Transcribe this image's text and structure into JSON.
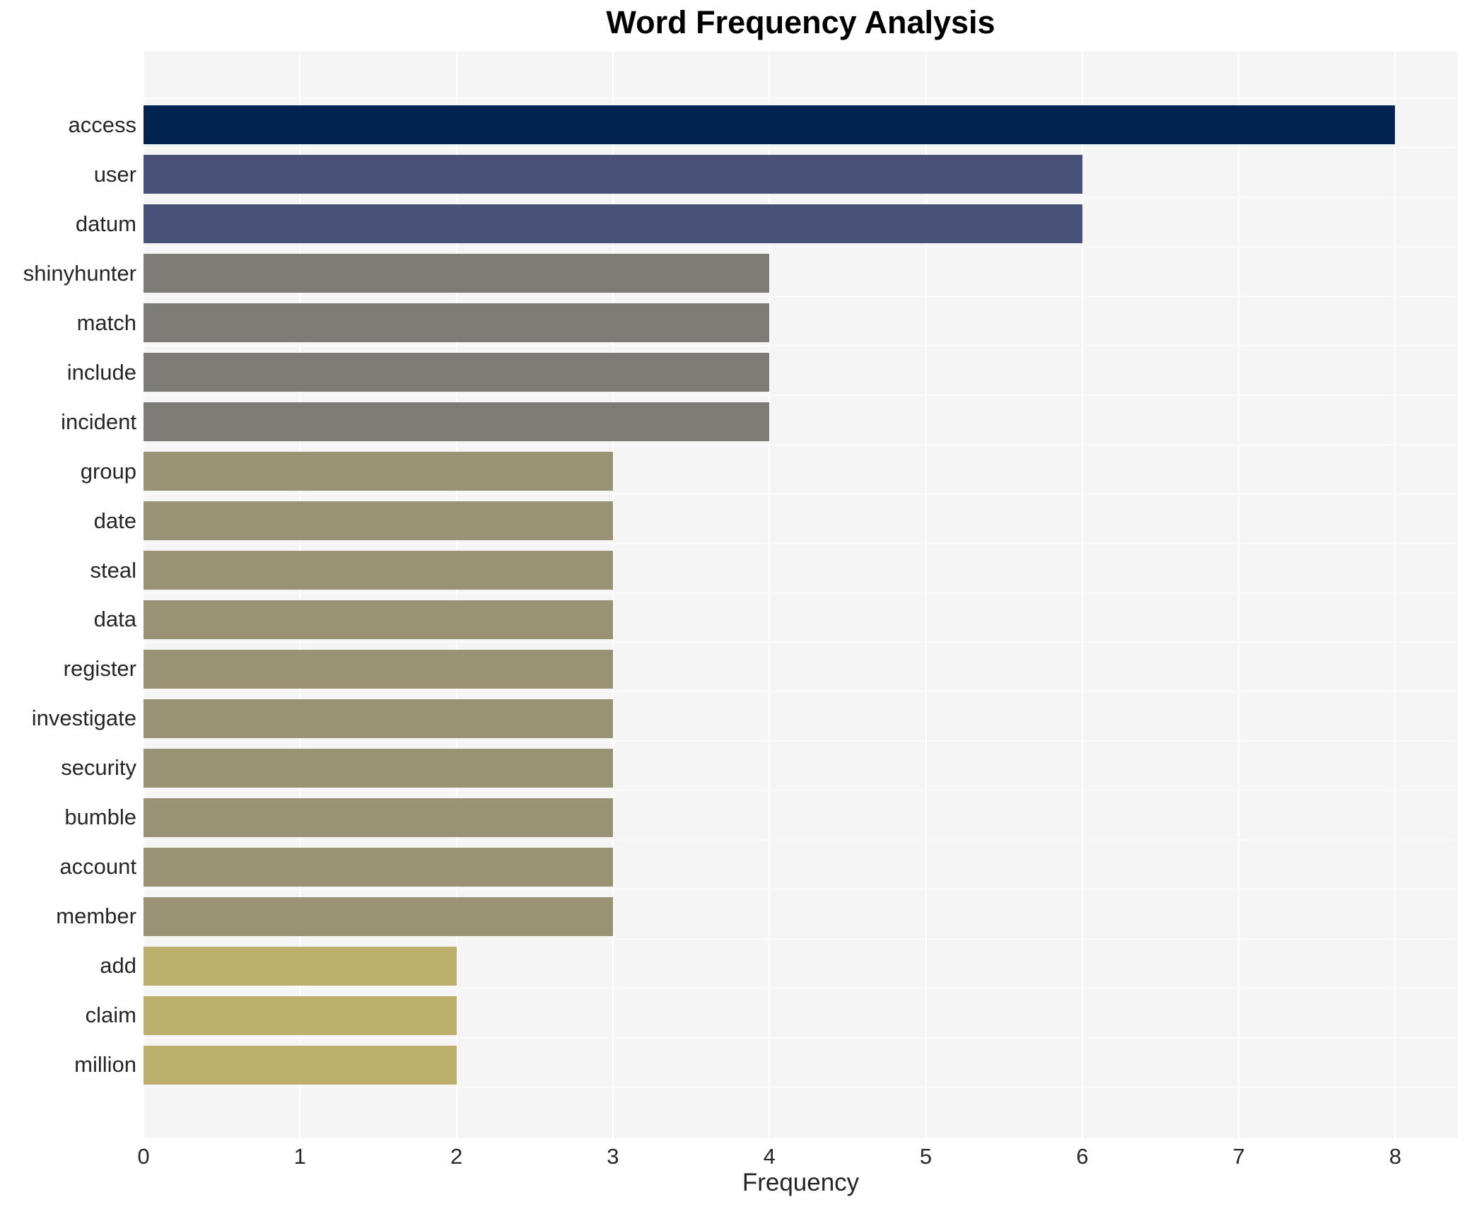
{
  "chart_data": {
    "type": "bar",
    "orientation": "horizontal",
    "title": "Word Frequency Analysis",
    "xlabel": "Frequency",
    "ylabel": "",
    "categories": [
      "access",
      "user",
      "datum",
      "shinyhunter",
      "match",
      "include",
      "incident",
      "group",
      "date",
      "steal",
      "data",
      "register",
      "investigate",
      "security",
      "bumble",
      "account",
      "member",
      "add",
      "claim",
      "million"
    ],
    "values": [
      8,
      6,
      6,
      4,
      4,
      4,
      4,
      3,
      3,
      3,
      3,
      3,
      3,
      3,
      3,
      3,
      3,
      2,
      2,
      2
    ],
    "bar_colors": [
      "#032450",
      "#485178",
      "#485178",
      "#7d7b76",
      "#7d7b76",
      "#7d7b76",
      "#7d7b76",
      "#9a9274",
      "#9a9274",
      "#9a9274",
      "#9a9274",
      "#9a9274",
      "#9a9274",
      "#9a9274",
      "#9a9274",
      "#9a9274",
      "#9a9274",
      "#bcae6b",
      "#bcae6b",
      "#bcae6b"
    ],
    "xticks": [
      0,
      1,
      2,
      3,
      4,
      5,
      6,
      7,
      8
    ],
    "xlim": [
      0,
      8.4
    ],
    "grid": true,
    "legend_position": "none",
    "colors": {
      "plot_background": "#f5f5f6",
      "page_background": "#ffffff",
      "gridline": "#ffffff",
      "tick_text": "#262626",
      "title_text": "#000000"
    }
  }
}
